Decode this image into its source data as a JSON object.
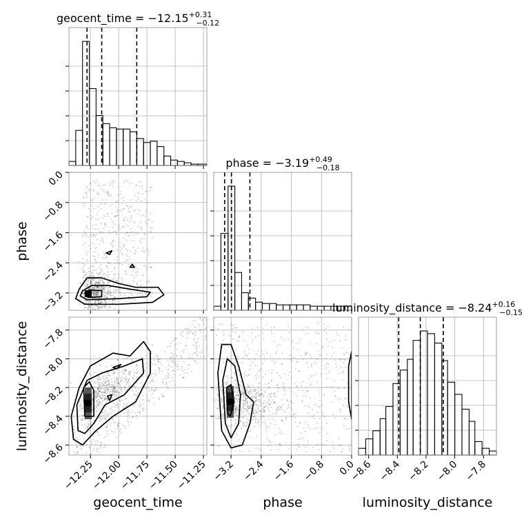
{
  "chart_data": {
    "type": "corner",
    "parameters": [
      "geocent_time",
      "phase",
      "luminosity_distance"
    ],
    "grid": true,
    "quantile_lines": "dashed",
    "titles": [
      {
        "param": "geocent_time",
        "lhs": "geocent_time = −12.15",
        "upper": "+0.31",
        "lower": "−0.12"
      },
      {
        "param": "phase",
        "lhs": "phase = −3.19",
        "upper": "+0.49",
        "lower": "−0.18"
      },
      {
        "param": "luminosity_distance",
        "lhs": "luminosity_distance = −8.24",
        "upper": "+0.16",
        "lower": "−0.15"
      }
    ],
    "axes": {
      "geocent_time": {
        "range": [
          -12.44,
          -11.22
        ],
        "ticks": [
          -12.25,
          -12.0,
          -11.75,
          -11.5,
          -11.25
        ],
        "tick_labels": [
          "−12.25",
          "−12.00",
          "−11.75",
          "−11.50",
          "−11.25"
        ],
        "label": "geocent_time"
      },
      "phase": {
        "range": [
          -3.66,
          0.0
        ],
        "ticks": [
          -3.2,
          -2.4,
          -1.6,
          -0.8,
          0.0
        ],
        "tick_labels": [
          "−3.2",
          "−2.4",
          "−1.6",
          "−0.8",
          "0.0"
        ],
        "label": "phase"
      },
      "luminosity_distance": {
        "range": [
          -8.67,
          -7.71
        ],
        "ticks": [
          -8.6,
          -8.4,
          -8.2,
          -8.0,
          -7.8
        ],
        "tick_labels": [
          "−8.6",
          "−8.4",
          "−8.2",
          "−8.0",
          "−7.8"
        ],
        "label": "luminosity_distance"
      }
    },
    "histograms": [
      {
        "param": "geocent_time",
        "quantiles": [
          -12.28,
          -12.15,
          -11.84
        ],
        "bins_x": [
          -12.44,
          -12.38,
          -12.32,
          -12.26,
          -12.2,
          -12.14,
          -12.08,
          -12.02,
          -11.96,
          -11.9,
          -11.84,
          -11.78,
          -11.72,
          -11.66,
          -11.6,
          -11.54,
          -11.48,
          -11.42,
          -11.36,
          -11.3,
          -11.22
        ],
        "counts": [
          3,
          26,
          92,
          57,
          37,
          31,
          28,
          27,
          27,
          25,
          20,
          17,
          18,
          14,
          7,
          4,
          3,
          2,
          1,
          1
        ]
      },
      {
        "param": "phase",
        "quantiles": [
          -3.37,
          -3.19,
          -2.7
        ],
        "bins_x": [
          -3.66,
          -3.47,
          -3.28,
          -3.1,
          -2.92,
          -2.74,
          -2.55,
          -2.37,
          -2.18,
          -2.0,
          -1.82,
          -1.64,
          -1.46,
          -1.28,
          -1.1,
          -0.91,
          -0.73,
          -0.55,
          -0.37,
          -0.18,
          0.0
        ],
        "counts": [
          3,
          57,
          92,
          28,
          13,
          9,
          6,
          5,
          5,
          4,
          4,
          4,
          4,
          4,
          3,
          3,
          3,
          3,
          3,
          3
        ]
      },
      {
        "param": "luminosity_distance",
        "quantiles": [
          -8.39,
          -8.24,
          -8.08
        ],
        "bins_x": [
          -8.67,
          -8.62,
          -8.57,
          -8.52,
          -8.48,
          -8.43,
          -8.38,
          -8.33,
          -8.29,
          -8.24,
          -8.19,
          -8.14,
          -8.09,
          -8.05,
          -8.0,
          -7.95,
          -7.9,
          -7.86,
          -7.81,
          -7.76,
          -7.71
        ],
        "counts": [
          5,
          12,
          18,
          27,
          36,
          53,
          63,
          71,
          85,
          92,
          90,
          83,
          70,
          54,
          45,
          34,
          25,
          10,
          5,
          3
        ]
      }
    ],
    "pairs": [
      {
        "x": "geocent_time",
        "y": "phase",
        "density_peak": [
          -12.27,
          -3.22
        ],
        "samples_spread": [
          [
            -12.32,
            -3.4
          ],
          [
            -11.7,
            -0.2
          ]
        ],
        "contours": [
          [
            [
              -12.35,
              -3.1
            ],
            [
              -12.28,
              -2.8
            ],
            [
              -12.15,
              -2.8
            ],
            [
              -12.0,
              -2.95
            ],
            [
              -11.85,
              -3.05
            ],
            [
              -11.65,
              -3.05
            ],
            [
              -11.6,
              -3.25
            ],
            [
              -11.7,
              -3.45
            ],
            [
              -12.0,
              -3.5
            ],
            [
              -12.3,
              -3.5
            ],
            [
              -12.38,
              -3.35
            ]
          ],
          [
            [
              -12.32,
              -3.15
            ],
            [
              -12.24,
              -3.0
            ],
            [
              -12.1,
              -3.0
            ],
            [
              -11.9,
              -3.1
            ],
            [
              -11.72,
              -3.18
            ],
            [
              -11.75,
              -3.3
            ],
            [
              -12.0,
              -3.35
            ],
            [
              -12.28,
              -3.38
            ],
            [
              -12.34,
              -3.28
            ]
          ],
          [
            [
              -12.3,
              -3.2
            ],
            [
              -12.26,
              -3.12
            ],
            [
              -12.15,
              -3.14
            ],
            [
              -12.15,
              -3.3
            ],
            [
              -12.27,
              -3.32
            ]
          ],
          [
            [
              -12.11,
              -2.14
            ],
            [
              -12.06,
              -2.08
            ],
            [
              -12.08,
              -2.18
            ]
          ],
          [
            [
              -11.9,
              -2.52
            ],
            [
              -11.88,
              -2.44
            ],
            [
              -11.86,
              -2.52
            ]
          ]
        ]
      },
      {
        "x": "geocent_time",
        "y": "luminosity_distance",
        "density_peak": [
          -12.27,
          -8.31
        ],
        "samples_spread": [
          [
            -12.42,
            -8.66
          ],
          [
            -11.22,
            -7.78
          ]
        ],
        "contours": [
          [
            [
              -12.4,
              -8.56
            ],
            [
              -12.42,
              -8.4
            ],
            [
              -12.35,
              -8.2
            ],
            [
              -12.25,
              -8.05
            ],
            [
              -12.05,
              -7.96
            ],
            [
              -11.9,
              -7.98
            ],
            [
              -11.78,
              -7.88
            ],
            [
              -11.72,
              -7.95
            ],
            [
              -11.72,
              -8.1
            ],
            [
              -11.85,
              -8.3
            ],
            [
              -12.05,
              -8.4
            ],
            [
              -12.2,
              -8.5
            ],
            [
              -12.32,
              -8.6
            ]
          ],
          [
            [
              -12.36,
              -8.5
            ],
            [
              -12.37,
              -8.32
            ],
            [
              -12.28,
              -8.15
            ],
            [
              -12.15,
              -8.1
            ],
            [
              -11.95,
              -8.05
            ],
            [
              -11.79,
              -8.0
            ],
            [
              -11.78,
              -8.1
            ],
            [
              -11.95,
              -8.25
            ],
            [
              -12.12,
              -8.32
            ],
            [
              -12.22,
              -8.45
            ],
            [
              -12.3,
              -8.52
            ]
          ],
          [
            [
              -12.3,
              -8.4
            ],
            [
              -12.31,
              -8.2
            ],
            [
              -12.26,
              -8.16
            ],
            [
              -12.22,
              -8.22
            ],
            [
              -12.22,
              -8.4
            ]
          ],
          [
            [
              -12.05,
              -8.06
            ],
            [
              -11.98,
              -8.04
            ],
            [
              -12.02,
              -8.07
            ]
          ],
          [
            [
              -12.1,
              -8.26
            ],
            [
              -12.06,
              -8.25
            ],
            [
              -12.08,
              -8.29
            ]
          ]
        ]
      },
      {
        "x": "phase",
        "y": "luminosity_distance",
        "density_peak": [
          -3.22,
          -8.3
        ],
        "samples_spread": [
          [
            -3.6,
            -8.65
          ],
          [
            -0.05,
            -7.75
          ]
        ],
        "contours": [
          [
            [
              -3.45,
              -8.5
            ],
            [
              -3.55,
              -8.1
            ],
            [
              -3.45,
              -7.9
            ],
            [
              -3.2,
              -7.9
            ],
            [
              -3.0,
              -8.05
            ],
            [
              -2.8,
              -8.25
            ],
            [
              -2.6,
              -8.3
            ],
            [
              -2.7,
              -8.45
            ],
            [
              -2.9,
              -8.6
            ],
            [
              -3.2,
              -8.62
            ]
          ],
          [
            [
              -3.35,
              -8.45
            ],
            [
              -3.42,
              -8.15
            ],
            [
              -3.3,
              -8.0
            ],
            [
              -3.1,
              -8.05
            ],
            [
              -2.95,
              -8.25
            ],
            [
              -3.0,
              -8.45
            ],
            [
              -3.2,
              -8.55
            ]
          ],
          [
            [
              -3.3,
              -8.38
            ],
            [
              -3.32,
              -8.2
            ],
            [
              -3.2,
              -8.18
            ],
            [
              -3.12,
              -8.3
            ],
            [
              -3.22,
              -8.4
            ]
          ],
          [
            [
              0.0,
              -7.95
            ],
            [
              -0.08,
              -8.05
            ],
            [
              -0.08,
              -8.3
            ],
            [
              0.0,
              -8.42
            ]
          ]
        ]
      }
    ]
  }
}
